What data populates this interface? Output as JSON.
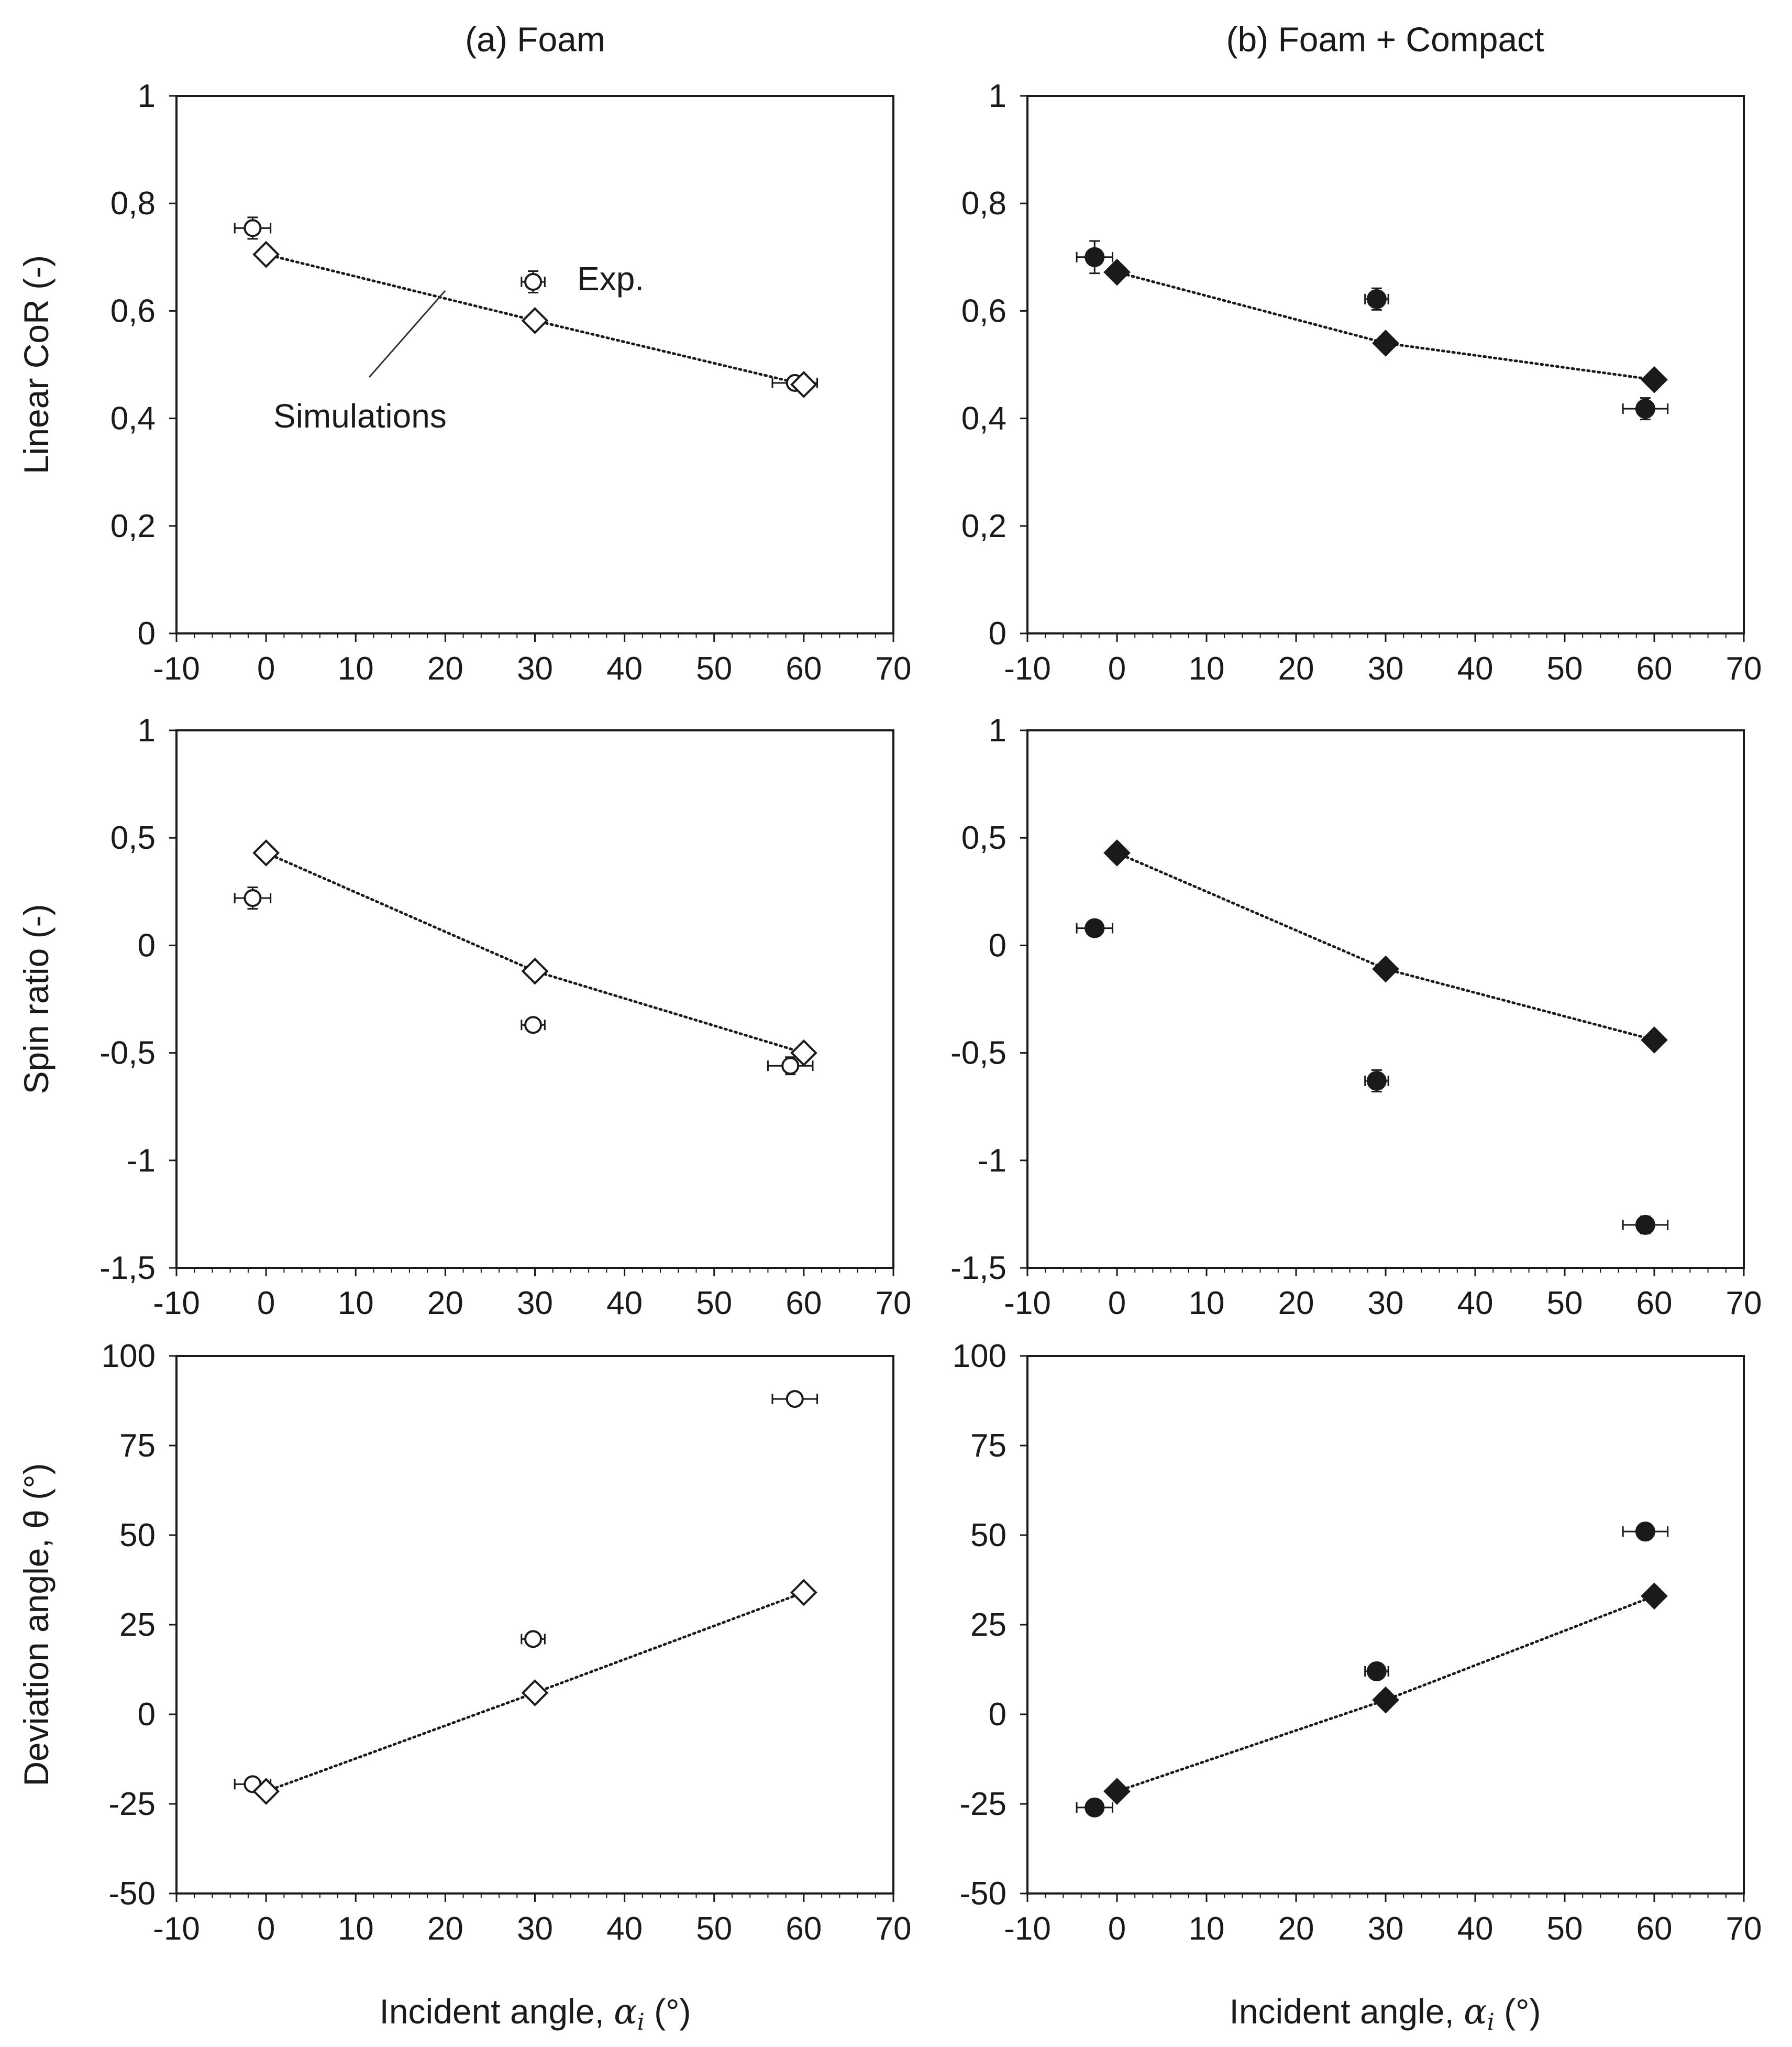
{
  "colors": {
    "ink": "#1a1a1a",
    "background": "#ffffff"
  },
  "columns": [
    {
      "title": "(a) Foam"
    },
    {
      "title": "(b) Foam + Compact"
    }
  ],
  "xlabel_text": "Incident angle, ",
  "xlabel_symbol": "α",
  "xlabel_subscript": "i",
  "xlabel_unit": " (°)",
  "annotations": {
    "exp": "Exp.",
    "sim": "Simulations"
  },
  "chart_data": [
    {
      "type": "scatter",
      "id": "a-cor",
      "column": 0,
      "row": 0,
      "xlabel": "",
      "ylabel": "Linear CoR (-)",
      "xlim": [
        -10,
        70
      ],
      "ylim": [
        0,
        1
      ],
      "xticks": [
        -10,
        0,
        10,
        20,
        30,
        40,
        50,
        60,
        70
      ],
      "xtick_labels": [
        "-10",
        "0",
        "10",
        "20",
        "30",
        "40",
        "50",
        "60",
        "70"
      ],
      "yticks": [
        0,
        0.2,
        0.4,
        0.6,
        0.8,
        1
      ],
      "ytick_labels": [
        "0",
        "0,2",
        "0,4",
        "0,6",
        "0,8",
        "1"
      ],
      "series": [
        {
          "name": "Exp.",
          "marker": "circle-open",
          "x": [
            -1.5,
            29.8,
            59
          ],
          "y": [
            0.754,
            0.654,
            0.466
          ],
          "xerr": [
            2,
            1.3,
            2.5
          ],
          "yerr": [
            0.02,
            0.02,
            0.012
          ]
        },
        {
          "name": "Simulations",
          "marker": "diamond-open",
          "line": "dotted",
          "x": [
            0,
            30,
            60
          ],
          "y": [
            0.705,
            0.582,
            0.463
          ]
        }
      ]
    },
    {
      "type": "scatter",
      "id": "b-cor",
      "column": 1,
      "row": 0,
      "xlabel": "",
      "ylabel": "",
      "xlim": [
        -10,
        70
      ],
      "ylim": [
        0,
        1
      ],
      "xticks": [
        -10,
        0,
        10,
        20,
        30,
        40,
        50,
        60,
        70
      ],
      "xtick_labels": [
        "-10",
        "0",
        "10",
        "20",
        "30",
        "40",
        "50",
        "60",
        "70"
      ],
      "yticks": [
        0,
        0.2,
        0.4,
        0.6,
        0.8,
        1
      ],
      "ytick_labels": [
        "0",
        "0,2",
        "0,4",
        "0,6",
        "0,8",
        "1"
      ],
      "series": [
        {
          "name": "Exp.",
          "marker": "circle-filled",
          "x": [
            -2.5,
            29,
            59
          ],
          "y": [
            0.7,
            0.622,
            0.418
          ],
          "xerr": [
            2,
            1.3,
            2.5
          ],
          "yerr": [
            0.03,
            0.02,
            0.02
          ]
        },
        {
          "name": "Simulations",
          "marker": "diamond-filled",
          "line": "dotted",
          "x": [
            0,
            30,
            60
          ],
          "y": [
            0.672,
            0.54,
            0.472
          ]
        }
      ]
    },
    {
      "type": "scatter",
      "id": "a-spin",
      "column": 0,
      "row": 1,
      "xlabel": "",
      "ylabel": "Spin ratio (-)",
      "xlim": [
        -10,
        70
      ],
      "ylim": [
        -1.5,
        1
      ],
      "xticks": [
        -10,
        0,
        10,
        20,
        30,
        40,
        50,
        60,
        70
      ],
      "xtick_labels": [
        "-10",
        "0",
        "10",
        "20",
        "30",
        "40",
        "50",
        "60",
        "70"
      ],
      "yticks": [
        -1.5,
        -1,
        -0.5,
        0,
        0.5,
        1
      ],
      "ytick_labels": [
        "-1,5",
        "-1",
        "-0,5",
        "0",
        "0,5",
        "1"
      ],
      "series": [
        {
          "name": "Exp.",
          "marker": "circle-open",
          "x": [
            -1.5,
            29.8,
            58.5
          ],
          "y": [
            0.22,
            -0.37,
            -0.56
          ],
          "xerr": [
            2,
            1.3,
            2.5
          ],
          "yerr": [
            0.05,
            0.02,
            0.04
          ]
        },
        {
          "name": "Simulations",
          "marker": "diamond-open",
          "line": "dotted",
          "x": [
            0,
            30,
            60
          ],
          "y": [
            0.43,
            -0.12,
            -0.5
          ]
        }
      ]
    },
    {
      "type": "scatter",
      "id": "b-spin",
      "column": 1,
      "row": 1,
      "xlabel": "",
      "ylabel": "",
      "xlim": [
        -10,
        70
      ],
      "ylim": [
        -1.5,
        1
      ],
      "xticks": [
        -10,
        0,
        10,
        20,
        30,
        40,
        50,
        60,
        70
      ],
      "xtick_labels": [
        "-10",
        "0",
        "10",
        "20",
        "30",
        "40",
        "50",
        "60",
        "70"
      ],
      "yticks": [
        -1.5,
        -1,
        -0.5,
        0,
        0.5,
        1
      ],
      "ytick_labels": [
        "-1,5",
        "-1",
        "-0,5",
        "0",
        "0,5",
        "1"
      ],
      "series": [
        {
          "name": "Exp.",
          "marker": "circle-filled",
          "x": [
            -2.5,
            29,
            59
          ],
          "y": [
            0.08,
            -0.63,
            -1.3
          ],
          "xerr": [
            2,
            1.3,
            2.5
          ],
          "yerr": [
            0.02,
            0.05,
            0.04
          ]
        },
        {
          "name": "Simulations",
          "marker": "diamond-filled",
          "line": "dotted",
          "x": [
            0,
            30,
            60
          ],
          "y": [
            0.43,
            -0.11,
            -0.44
          ]
        }
      ]
    },
    {
      "type": "scatter",
      "id": "a-dev",
      "column": 0,
      "row": 2,
      "xlabel": "Incident angle, αi (°)",
      "ylabel": "Deviation angle, θ (°)",
      "xlim": [
        -10,
        70
      ],
      "ylim": [
        -50,
        100
      ],
      "xticks": [
        -10,
        0,
        10,
        20,
        30,
        40,
        50,
        60,
        70
      ],
      "xtick_labels": [
        "-10",
        "0",
        "10",
        "20",
        "30",
        "40",
        "50",
        "60",
        "70"
      ],
      "yticks": [
        -50,
        -25,
        0,
        25,
        50,
        75,
        100
      ],
      "ytick_labels": [
        "-50",
        "-25",
        "0",
        "25",
        "50",
        "75",
        "100"
      ],
      "series": [
        {
          "name": "Exp.",
          "marker": "circle-open",
          "x": [
            -1.5,
            29.8,
            59
          ],
          "y": [
            -19.5,
            21,
            88
          ],
          "xerr": [
            2,
            1.3,
            2.5
          ],
          "yerr": [
            1,
            1,
            1
          ]
        },
        {
          "name": "Simulations",
          "marker": "diamond-open",
          "line": "dotted",
          "x": [
            0,
            30,
            60
          ],
          "y": [
            -21.5,
            6,
            34
          ]
        }
      ]
    },
    {
      "type": "scatter",
      "id": "b-dev",
      "column": 1,
      "row": 2,
      "xlabel": "Incident angle, αi (°)",
      "ylabel": "",
      "xlim": [
        -10,
        70
      ],
      "ylim": [
        -50,
        100
      ],
      "xticks": [
        -10,
        0,
        10,
        20,
        30,
        40,
        50,
        60,
        70
      ],
      "xtick_labels": [
        "-10",
        "0",
        "10",
        "20",
        "30",
        "40",
        "50",
        "60",
        "70"
      ],
      "yticks": [
        -50,
        -25,
        0,
        25,
        50,
        75,
        100
      ],
      "ytick_labels": [
        "-50",
        "-25",
        "0",
        "25",
        "50",
        "75",
        "100"
      ],
      "series": [
        {
          "name": "Exp.",
          "marker": "circle-filled",
          "x": [
            -2.5,
            29,
            59
          ],
          "y": [
            -26,
            12,
            51
          ],
          "xerr": [
            2,
            1.3,
            2.5
          ],
          "yerr": [
            1,
            1,
            1.5
          ]
        },
        {
          "name": "Simulations",
          "marker": "diamond-filled",
          "line": "dotted",
          "x": [
            0,
            30,
            60
          ],
          "y": [
            -21.5,
            4,
            33
          ]
        }
      ]
    }
  ]
}
